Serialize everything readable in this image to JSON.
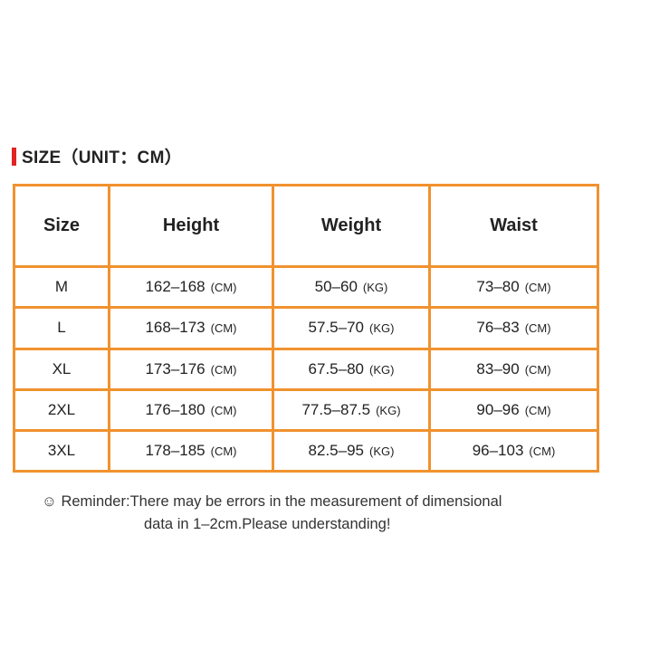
{
  "title": "SIZE（UNIT：CM）",
  "accent_color": "#e32222",
  "border_color": "#f0922e",
  "table": {
    "headers": [
      "Size",
      "Height",
      "Weight",
      "Waist"
    ],
    "rows": [
      {
        "size": "M",
        "height": "162–168",
        "height_unit": "(CM)",
        "weight": "50–60",
        "weight_unit": "(KG)",
        "waist": "73–80",
        "waist_unit": "(CM)"
      },
      {
        "size": "L",
        "height": "168–173",
        "height_unit": "(CM)",
        "weight": "57.5–70",
        "weight_unit": "(KG)",
        "waist": "76–83",
        "waist_unit": "(CM)"
      },
      {
        "size": "XL",
        "height": "173–176",
        "height_unit": "(CM)",
        "weight": "67.5–80",
        "weight_unit": "(KG)",
        "waist": "83–90",
        "waist_unit": "(CM)"
      },
      {
        "size": "2XL",
        "height": "176–180",
        "height_unit": "(CM)",
        "weight": "77.5–87.5",
        "weight_unit": "(KG)",
        "waist": "90–96",
        "waist_unit": "(CM)"
      },
      {
        "size": "3XL",
        "height": "178–185",
        "height_unit": "(CM)",
        "weight": "82.5–95",
        "weight_unit": "(KG)",
        "waist": "96–103",
        "waist_unit": "(CM)"
      }
    ]
  },
  "note": {
    "icon": "smiley-icon",
    "line1": "Reminder:There may be errors in the measurement of dimensional",
    "line2": "data in 1–2cm.Please understanding!"
  }
}
